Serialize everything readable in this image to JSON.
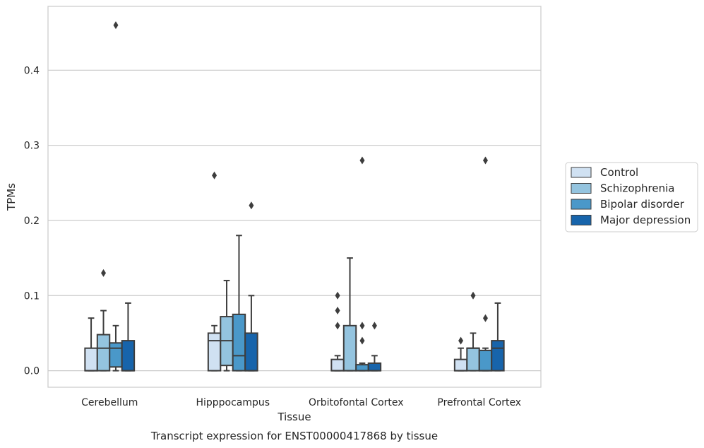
{
  "caption": "Transcript expression for ENST00000417868 by tissue",
  "chart_data": {
    "type": "box",
    "xlabel": "Tissue",
    "ylabel": "TPMs",
    "ylim": [
      -0.022,
      0.485
    ],
    "yticks": [
      0.0,
      0.1,
      0.2,
      0.3,
      0.4
    ],
    "ytick_labels": [
      "0.0",
      "0.1",
      "0.2",
      "0.3",
      "0.4"
    ],
    "grid": "horizontal",
    "legend_position": "right",
    "categories": [
      "Cerebellum",
      "Hipppocampus",
      "Orbitofontal Cortex",
      "Prefrontal Cortex"
    ],
    "series": [
      {
        "name": "Control",
        "color": "#d0e1f2",
        "boxes": [
          {
            "whislo": 0.0,
            "q1": 0.0,
            "med": 0.0,
            "q3": 0.03,
            "whishi": 0.07,
            "fliers": []
          },
          {
            "whislo": 0.0,
            "q1": 0.0,
            "med": 0.04,
            "q3": 0.05,
            "whishi": 0.06,
            "fliers": [
              0.26
            ]
          },
          {
            "whislo": 0.0,
            "q1": 0.0,
            "med": 0.0,
            "q3": 0.015,
            "whishi": 0.02,
            "fliers": [
              0.06,
              0.08,
              0.1
            ]
          },
          {
            "whislo": 0.0,
            "q1": 0.0,
            "med": 0.0,
            "q3": 0.015,
            "whishi": 0.03,
            "fliers": [
              0.04
            ]
          }
        ]
      },
      {
        "name": "Schizophrenia",
        "color": "#94c4df",
        "boxes": [
          {
            "whislo": 0.0,
            "q1": 0.0,
            "med": 0.03,
            "q3": 0.048,
            "whishi": 0.08,
            "fliers": [
              0.13
            ]
          },
          {
            "whislo": 0.0,
            "q1": 0.007,
            "med": 0.04,
            "q3": 0.072,
            "whishi": 0.12,
            "fliers": []
          },
          {
            "whislo": 0.0,
            "q1": 0.0,
            "med": 0.0,
            "q3": 0.06,
            "whishi": 0.15,
            "fliers": []
          },
          {
            "whislo": 0.0,
            "q1": 0.0,
            "med": 0.03,
            "q3": 0.03,
            "whishi": 0.05,
            "fliers": [
              0.1
            ]
          }
        ]
      },
      {
        "name": "Bipolar disorder",
        "color": "#4a98c9",
        "boxes": [
          {
            "whislo": 0.0,
            "q1": 0.005,
            "med": 0.03,
            "q3": 0.037,
            "whishi": 0.06,
            "fliers": [
              0.46
            ]
          },
          {
            "whislo": 0.0,
            "q1": 0.0,
            "med": 0.02,
            "q3": 0.075,
            "whishi": 0.18,
            "fliers": []
          },
          {
            "whislo": 0.0,
            "q1": 0.0,
            "med": 0.0,
            "q3": 0.008,
            "whishi": 0.01,
            "fliers": [
              0.04,
              0.06,
              0.28
            ]
          },
          {
            "whislo": 0.0,
            "q1": 0.0,
            "med": 0.0,
            "q3": 0.027,
            "whishi": 0.03,
            "fliers": [
              0.07,
              0.28
            ]
          }
        ]
      },
      {
        "name": "Major depression",
        "color": "#1764ab",
        "boxes": [
          {
            "whislo": 0.0,
            "q1": 0.0,
            "med": 0.0,
            "q3": 0.04,
            "whishi": 0.09,
            "fliers": []
          },
          {
            "whislo": 0.0,
            "q1": 0.0,
            "med": 0.0,
            "q3": 0.05,
            "whishi": 0.1,
            "fliers": [
              0.22
            ]
          },
          {
            "whislo": 0.0,
            "q1": 0.0,
            "med": 0.0,
            "q3": 0.01,
            "whishi": 0.02,
            "fliers": [
              0.06
            ]
          },
          {
            "whislo": 0.0,
            "q1": 0.0,
            "med": 0.03,
            "q3": 0.04,
            "whishi": 0.09,
            "fliers": []
          }
        ]
      }
    ]
  }
}
